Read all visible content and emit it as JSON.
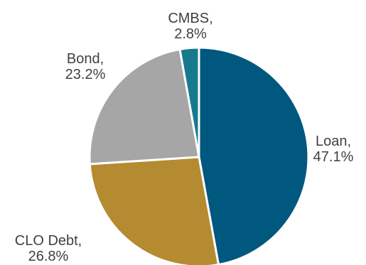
{
  "chart_data": {
    "type": "pie",
    "title": "",
    "start_angle_deg": 0,
    "direction": "clockwise",
    "slices": [
      {
        "name": "Loan",
        "value": 47.1,
        "display": "47.1%",
        "color": "#00587f"
      },
      {
        "name": "CLO Debt",
        "value": 26.8,
        "display": "26.8%",
        "color": "#b48b30"
      },
      {
        "name": "Bond",
        "value": 23.2,
        "display": "23.2%",
        "color": "#a6a6a6"
      },
      {
        "name": "CMBS",
        "value": 2.8,
        "display": "2.8%",
        "color": "#17798c"
      }
    ]
  }
}
